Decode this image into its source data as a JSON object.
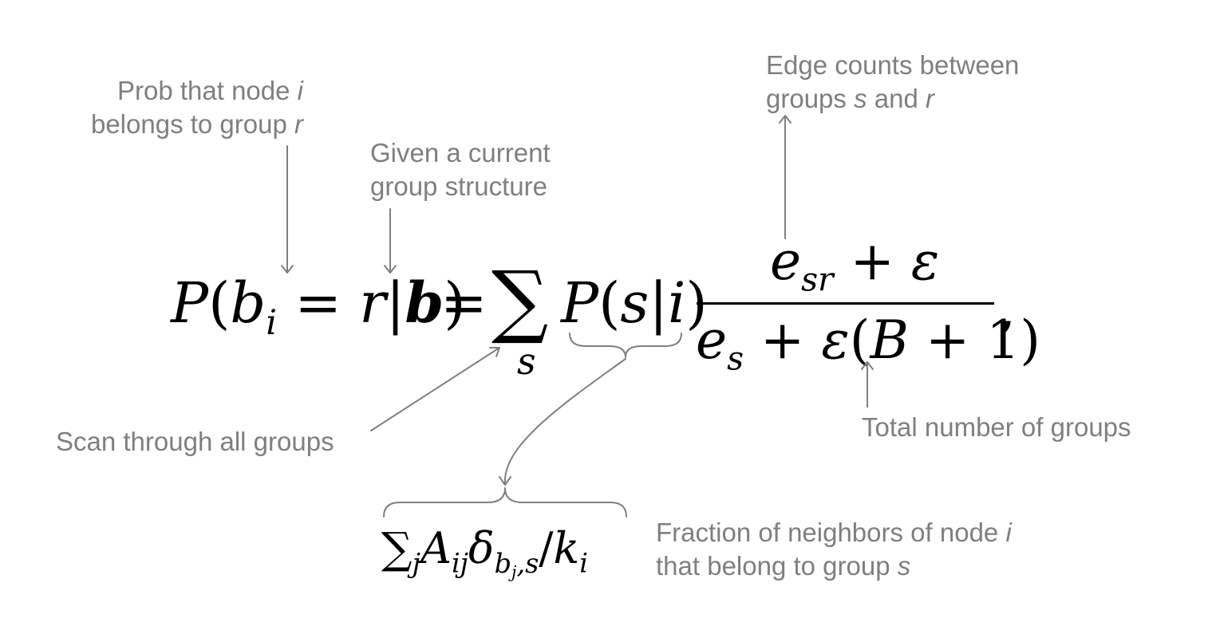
{
  "annotations": {
    "prob_node": {
      "line1_text": "Prob that node ",
      "line1_var": "i",
      "line2_text": "belongs to group ",
      "line2_var": "r"
    },
    "given_structure": {
      "line1": "Given a current",
      "line2": "group structure"
    },
    "edge_counts": {
      "line1": "Edge counts between",
      "line2_a": "groups ",
      "line2_var1": "s",
      "line2_b": " and ",
      "line2_var2": "r"
    },
    "total_groups": "Total number of groups",
    "scan_groups": "Scan through all groups",
    "fraction_neighbors": {
      "line1_text": "Fraction of neighbors of node ",
      "line1_var": "i",
      "line2_text": "that belong to group ",
      "line2_var": "s"
    }
  },
  "equation": {
    "lhs_P": "P",
    "lhs_open": "(",
    "lhs_b": "b",
    "lhs_b_sub": "i",
    "lhs_eq": " = ",
    "lhs_r": "r",
    "lhs_bar": "|",
    "lhs_bold_b": "b",
    "lhs_close": ")",
    "eq_sign": "=",
    "sum_symbol": "∑",
    "sum_index": "s",
    "term_P": "P",
    "term_open": "(",
    "term_s": "s",
    "term_bar": "|",
    "term_i": "i",
    "term_close": ")",
    "numerator_e": "e",
    "numerator_sub": "sr",
    "numerator_plus": " + ",
    "numerator_eps": "ε",
    "denominator_e": "e",
    "denominator_sub": "s",
    "denominator_plus": " + ",
    "denominator_eps": "ε",
    "denominator_open": "(",
    "denominator_B": "B",
    "denominator_plus1": " + ",
    "denominator_one": "1",
    "denominator_close": ")",
    "trailing_comma": ","
  },
  "sub_equation": {
    "sum_symbol": "∑",
    "sum_sub": "j",
    "A": "A",
    "A_sub": "ij",
    "delta": "δ",
    "delta_sub_b": "b",
    "delta_sub_j": "j",
    "delta_sub_rest": ",s",
    "slash": "/",
    "k": "k",
    "k_sub": "i"
  },
  "colors": {
    "annotation_text": "#7f7f7f",
    "arrow_stroke": "#7f7f7f",
    "equation_text": "#000000",
    "background": "#ffffff"
  }
}
